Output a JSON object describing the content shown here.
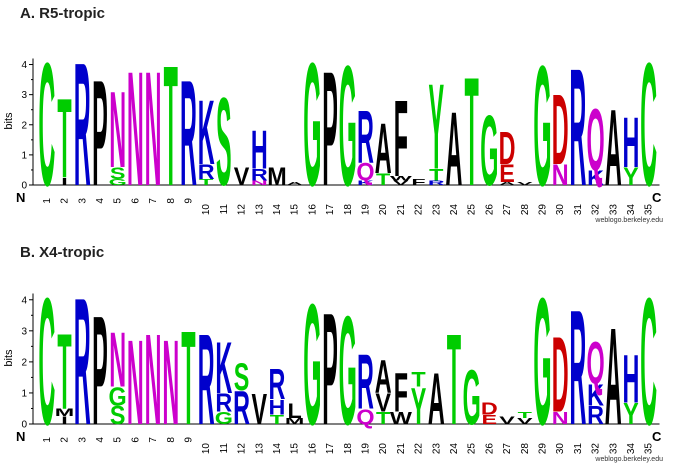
{
  "chart_data": [
    {
      "type": "sequence-logo",
      "title": "A. R5-tropic",
      "ylabel": "bits",
      "ylim": [
        0,
        4.3
      ],
      "yticks": [
        0,
        1,
        2,
        3,
        4
      ],
      "start_label": "N",
      "end_label": "C",
      "credit": "weblogo.berkeley.edu",
      "positions": [
        "1",
        "2",
        "3",
        "4",
        "5",
        "6",
        "7",
        "8",
        "9",
        "10",
        "11",
        "12",
        "13",
        "14",
        "15",
        "16",
        "17",
        "18",
        "19",
        "20",
        "21",
        "22",
        "23",
        "24",
        "25",
        "26",
        "27",
        "28",
        "29",
        "30",
        "31",
        "32",
        "33",
        "34",
        "35"
      ],
      "stacks": [
        [
          [
            "C",
            4.2
          ]
        ],
        [
          [
            "I",
            0.25
          ],
          [
            "T",
            2.7
          ]
        ],
        [
          [
            "R",
            4.2
          ]
        ],
        [
          [
            "P",
            3.6
          ]
        ],
        [
          [
            "G",
            0.2
          ],
          [
            "S",
            0.4
          ],
          [
            "N",
            2.6
          ]
        ],
        [
          [
            "N",
            3.9
          ]
        ],
        [
          [
            "N",
            3.9
          ]
        ],
        [
          [
            "T",
            4.1
          ]
        ],
        [
          [
            "R",
            3.6
          ]
        ],
        [
          [
            "T",
            0.2
          ],
          [
            "R",
            0.5
          ],
          [
            "K",
            2.2
          ]
        ],
        [
          [
            "S",
            3.0
          ]
        ],
        [
          [
            "V",
            0.6
          ]
        ],
        [
          [
            "N",
            0.15
          ],
          [
            "R",
            0.4
          ],
          [
            "H",
            1.3
          ]
        ],
        [
          [
            "M",
            0.6
          ]
        ],
        [
          [
            "A",
            0.1
          ]
        ],
        [
          [
            "G",
            4.2
          ]
        ],
        [
          [
            "P",
            3.9
          ]
        ],
        [
          [
            "G",
            4.1
          ]
        ],
        [
          [
            "K",
            0.15
          ],
          [
            "Q",
            0.6
          ],
          [
            "R",
            1.8
          ]
        ],
        [
          [
            "T",
            0.4
          ],
          [
            "A",
            1.7
          ]
        ],
        [
          [
            "V",
            0.15
          ],
          [
            "W",
            0.15
          ],
          [
            "F",
            2.6
          ]
        ],
        [
          [
            "F",
            0.2
          ]
        ],
        [
          [
            "R",
            0.15
          ],
          [
            "T",
            0.4
          ],
          [
            "Y",
            2.9
          ]
        ],
        [
          [
            "A",
            2.5
          ]
        ],
        [
          [
            "T",
            3.7
          ]
        ],
        [
          [
            "G",
            2.4
          ]
        ],
        [
          [
            "A",
            0.1
          ],
          [
            "E",
            0.6
          ],
          [
            "D",
            1.1
          ]
        ],
        [
          [
            "V",
            0.1
          ]
        ],
        [
          [
            "G",
            4.1
          ]
        ],
        [
          [
            "N",
            0.7
          ],
          [
            "D",
            2.4
          ]
        ],
        [
          [
            "R",
            4.0
          ]
        ],
        [
          [
            "K",
            0.5
          ],
          [
            "Q",
            2.1
          ]
        ],
        [
          [
            "A",
            2.6
          ]
        ],
        [
          [
            "Y",
            0.6
          ],
          [
            "H",
            1.7
          ]
        ],
        [
          [
            "C",
            4.2
          ]
        ]
      ]
    },
    {
      "type": "sequence-logo",
      "title": "B. X4-tropic",
      "ylabel": "bits",
      "ylim": [
        0,
        4.3
      ],
      "yticks": [
        0,
        1,
        2,
        3,
        4
      ],
      "start_label": "N",
      "end_label": "C",
      "credit": "weblogo.berkeley.edu",
      "positions": [
        "1",
        "2",
        "3",
        "4",
        "5",
        "6",
        "7",
        "8",
        "9",
        "10",
        "11",
        "12",
        "13",
        "14",
        "15",
        "16",
        "17",
        "18",
        "19",
        "20",
        "21",
        "22",
        "23",
        "24",
        "25",
        "26",
        "27",
        "28",
        "29",
        "30",
        "31",
        "32",
        "33",
        "34",
        "35"
      ],
      "stacks": [
        [
          [
            "C",
            4.2
          ]
        ],
        [
          [
            "I",
            0.25
          ],
          [
            "M",
            0.25
          ],
          [
            "T",
            2.5
          ]
        ],
        [
          [
            "R",
            4.2
          ]
        ],
        [
          [
            "P",
            3.6
          ]
        ],
        [
          [
            "S",
            0.6
          ],
          [
            "G",
            0.6
          ],
          [
            "N",
            1.8
          ]
        ],
        [
          [
            "N",
            2.8
          ]
        ],
        [
          [
            "N",
            3.0
          ]
        ],
        [
          [
            "N",
            2.8
          ]
        ],
        [
          [
            "T",
            3.1
          ]
        ],
        [
          [
            "R",
            3.0
          ]
        ],
        [
          [
            "G",
            0.4
          ],
          [
            "R",
            0.6
          ],
          [
            "K",
            1.7
          ]
        ],
        [
          [
            "R",
            1.1
          ],
          [
            "S",
            0.9
          ]
        ],
        [
          [
            "V",
            1.0
          ]
        ],
        [
          [
            "T",
            0.3
          ],
          [
            "H",
            0.5
          ],
          [
            "R",
            1.0
          ]
        ],
        [
          [
            "M",
            0.2
          ],
          [
            "L",
            0.5
          ]
        ],
        [
          [
            "G",
            4.0
          ]
        ],
        [
          [
            "P",
            3.7
          ]
        ],
        [
          [
            "G",
            3.6
          ]
        ],
        [
          [
            "Q",
            0.5
          ],
          [
            "R",
            1.8
          ]
        ],
        [
          [
            "T",
            0.4
          ],
          [
            "V",
            0.6
          ],
          [
            "A",
            1.1
          ]
        ],
        [
          [
            "W",
            0.4
          ],
          [
            "F",
            1.3
          ]
        ],
        [
          [
            "Y",
            1.2
          ],
          [
            "T",
            0.5
          ]
        ],
        [
          [
            "A",
            1.7
          ]
        ],
        [
          [
            "T",
            3.0
          ]
        ],
        [
          [
            "G",
            1.8
          ]
        ],
        [
          [
            "E",
            0.3
          ],
          [
            "D",
            0.4
          ]
        ],
        [
          [
            "V",
            0.25
          ]
        ],
        [
          [
            "V",
            0.2
          ],
          [
            "T",
            0.2
          ]
        ],
        [
          [
            "G",
            4.2
          ]
        ],
        [
          [
            "N",
            0.4
          ],
          [
            "D",
            2.5
          ]
        ],
        [
          [
            "R",
            3.8
          ]
        ],
        [
          [
            "R",
            0.6
          ],
          [
            "K",
            0.7
          ],
          [
            "Q",
            1.4
          ]
        ],
        [
          [
            "A",
            3.2
          ]
        ],
        [
          [
            "Y",
            0.7
          ],
          [
            "H",
            1.6
          ]
        ],
        [
          [
            "C",
            4.2
          ]
        ]
      ]
    }
  ],
  "colors": {
    "green": "#00cc00",
    "blue": "#0000cc",
    "magenta": "#cc00cc",
    "red": "#cc0000",
    "black": "#000000"
  },
  "color_groups": {
    "green": "GSTYCQN",
    "blue": "KRH",
    "magenta": "NQ",
    "red": "DE",
    "black": "AVLIPWFM"
  }
}
